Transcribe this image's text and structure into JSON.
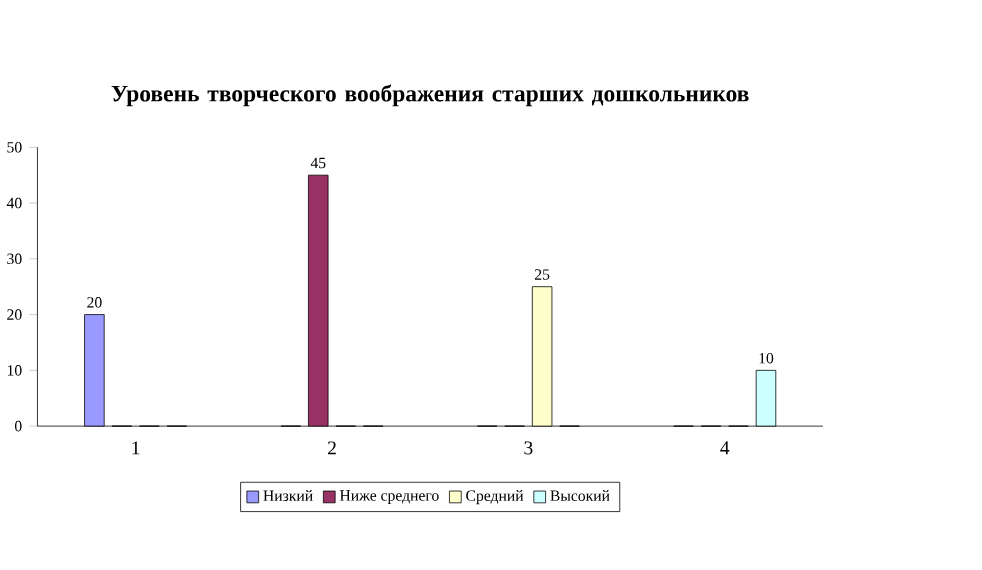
{
  "chart_data": {
    "type": "bar",
    "title": "Уровень творческого воображения старших дошкольников",
    "categories": [
      "1",
      "2",
      "3",
      "4"
    ],
    "series": [
      {
        "name": "Низкий",
        "color": "#9999ff",
        "values": [
          20,
          0,
          0,
          0
        ],
        "value_labels": [
          "20",
          null,
          null,
          null
        ]
      },
      {
        "name": "Ниже среднего",
        "color": "#993366",
        "values": [
          0,
          45,
          0,
          0
        ],
        "value_labels": [
          null,
          "45",
          null,
          null
        ]
      },
      {
        "name": "Средний",
        "color": "#ffffcc",
        "values": [
          0,
          0,
          25,
          0
        ],
        "value_labels": [
          null,
          null,
          "25",
          null
        ]
      },
      {
        "name": "Высокий",
        "color": "#ccffff",
        "values": [
          0,
          0,
          0,
          10
        ],
        "value_labels": [
          null,
          null,
          null,
          "10"
        ]
      }
    ],
    "ylim": [
      0,
      50
    ],
    "yticks": [
      0,
      10,
      20,
      30,
      40,
      50
    ],
    "grid": false,
    "legend": "bottom"
  }
}
